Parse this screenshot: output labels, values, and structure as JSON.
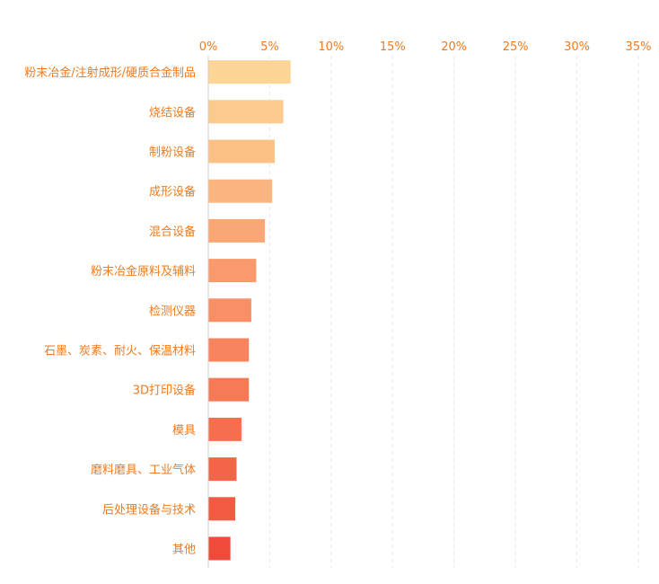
{
  "chart_data": {
    "type": "bar",
    "orientation": "horizontal",
    "categories": [
      "粉末冶金/注射成形/硬质合金制品",
      "烧结设备",
      "制粉设备",
      "成形设备",
      "混合设备",
      "粉末冶金原料及辅料",
      "检测仪器",
      "石墨、炭素、耐火、保温材料",
      "3D打印设备",
      "模具",
      "磨料磨具、工业气体",
      "后处理设备与技术",
      "其他"
    ],
    "values": [
      6.7,
      6.1,
      5.4,
      5.2,
      4.6,
      3.9,
      3.5,
      3.3,
      3.3,
      2.7,
      2.3,
      2.2,
      1.8
    ],
    "xlim": [
      0,
      35
    ],
    "xticks": [
      "0%",
      "5%",
      "10%",
      "15%",
      "20%",
      "25%",
      "30%",
      "35%"
    ],
    "xtick_values": [
      0,
      5,
      10,
      15,
      20,
      25,
      30,
      35
    ],
    "axis_position": "top",
    "grid": true,
    "colors": [
      "#fdd596",
      "#fdca8d",
      "#fdc084",
      "#fcb57e",
      "#fba775",
      "#fa9a6c",
      "#f98f64",
      "#f8845d",
      "#f77a56",
      "#f56f4f",
      "#f46548",
      "#f25a41",
      "#f04b3a"
    ],
    "label_color": "#f07b1f"
  }
}
